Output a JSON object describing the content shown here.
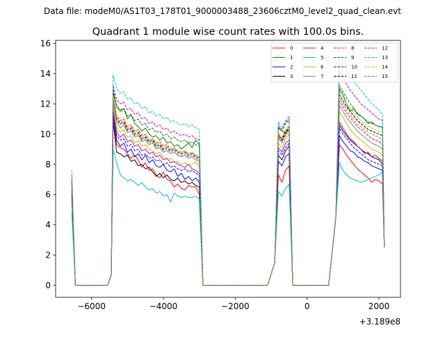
{
  "chart_data": {
    "type": "line",
    "suptitle": "Data file: modeM0/AS1T03_178T01_9000003488_23606cztM0_level2_quad_clean.evt",
    "title": "Quadrant 1 module wise count rates with 100.0s bins.",
    "xlabel": "",
    "ylabel": "",
    "x_offset_label": "+3.189e8",
    "xlim": [
      -7000,
      2600
    ],
    "ylim": [
      -0.8,
      16.2
    ],
    "x_ticks": [
      -6000,
      -4000,
      -2000,
      0,
      2000
    ],
    "x_tick_labels": [
      "−6000",
      "−4000",
      "−2000",
      "0",
      "2000"
    ],
    "y_ticks": [
      0,
      2,
      4,
      6,
      8,
      10,
      12,
      14,
      16
    ],
    "y_tick_labels": [
      "0",
      "2",
      "4",
      "6",
      "8",
      "10",
      "12",
      "14",
      "16"
    ],
    "legend_position": "top-right",
    "grid": false,
    "segments": [
      {
        "start": -5400,
        "end": -3000,
        "step": 100
      },
      {
        "start": -800,
        "end": -500,
        "step": 100
      },
      {
        "start": 900,
        "end": 2100,
        "step": 100
      }
    ],
    "series": [
      {
        "name": "0",
        "color": "#ff0000",
        "dash": "solid",
        "pre": 6.5,
        "edge": 11.0,
        "s1": [
          9.6,
          9.3,
          9.1,
          9.0,
          8.7,
          8.4,
          8.6,
          8.3,
          7.8,
          8.1,
          7.6,
          7.7,
          7.3,
          7.1,
          7.5,
          7.0,
          6.9,
          6.5,
          6.7,
          6.4,
          6.3,
          6.6,
          6.5,
          6.5,
          6.0
        ],
        "s2": [
          7.3,
          6.8,
          7.6,
          7.9
        ],
        "s3": [
          9.3,
          9.0,
          8.6,
          8.3,
          8.0,
          7.7,
          7.5,
          7.3,
          7.1,
          6.8,
          7.0,
          6.9,
          6.7
        ]
      },
      {
        "name": "1",
        "color": "#008000",
        "dash": "solid",
        "pre": 6.8,
        "edge": 12.8,
        "s1": [
          12.2,
          11.8,
          11.5,
          11.7,
          11.0,
          11.3,
          10.7,
          10.5,
          10.2,
          10.4,
          10.0,
          9.8,
          9.9,
          9.6,
          9.8,
          9.4,
          9.5,
          9.2,
          9.3,
          9.0,
          9.2,
          9.4,
          9.1,
          9.6,
          9.3
        ],
        "s2": [
          10.4,
          10.2,
          10.1,
          10.3
        ],
        "s3": [
          13.0,
          12.6,
          12.0,
          11.5,
          11.7,
          11.3,
          11.2,
          11.0,
          10.7,
          10.8,
          10.6,
          10.5,
          10.5
        ]
      },
      {
        "name": "2",
        "color": "#0000ff",
        "dash": "solid",
        "pre": 5.9,
        "edge": 11.4,
        "s1": [
          9.8,
          9.6,
          9.2,
          9.4,
          8.8,
          9.0,
          8.5,
          8.7,
          8.3,
          8.6,
          8.1,
          8.3,
          7.9,
          7.8,
          8.0,
          7.6,
          7.5,
          7.7,
          7.2,
          7.4,
          7.0,
          7.2,
          6.9,
          7.1,
          6.8
        ],
        "s2": [
          8.2,
          7.9,
          8.5,
          8.7
        ],
        "s3": [
          9.9,
          9.5,
          9.2,
          8.9,
          8.8,
          8.5,
          8.4,
          8.2,
          8.1,
          7.9,
          7.8,
          7.7,
          7.6
        ]
      },
      {
        "name": "3",
        "color": "#000000",
        "dash": "solid",
        "pre": 6.0,
        "edge": 10.8,
        "s1": [
          9.0,
          8.8,
          8.7,
          8.5,
          8.6,
          8.2,
          8.3,
          7.9,
          8.0,
          7.7,
          7.8,
          7.5,
          7.2,
          7.4,
          7.1,
          7.3,
          7.0,
          6.9,
          7.1,
          6.8,
          6.9,
          6.7,
          6.8,
          6.6,
          6.5
        ],
        "s2": [
          8.6,
          8.3,
          8.9,
          9.2
        ],
        "s3": [
          10.6,
          10.2,
          9.9,
          9.6,
          9.4,
          9.2,
          9.0,
          8.8,
          8.7,
          8.5,
          8.4,
          8.3,
          8.0
        ]
      },
      {
        "name": "4",
        "color": "#bf00bf",
        "dash": "solid",
        "pre": 6.3,
        "edge": 11.6,
        "s1": [
          10.5,
          10.1,
          9.8,
          10.0,
          9.5,
          9.6,
          9.2,
          9.3,
          8.9,
          9.0,
          8.7,
          8.8,
          8.5,
          8.6,
          8.3,
          8.4,
          8.1,
          8.2,
          8.0,
          7.9,
          7.8,
          8.0,
          7.7,
          7.6,
          7.4
        ],
        "s2": [
          9.1,
          8.8,
          9.4,
          9.6
        ],
        "s3": [
          10.8,
          10.4,
          10.0,
          9.7,
          9.5,
          9.2,
          9.0,
          8.7,
          8.8,
          8.5,
          8.6,
          8.4,
          8.2
        ]
      },
      {
        "name": "5",
        "color": "#00bfbf",
        "dash": "solid",
        "pre": 4.8,
        "edge": 9.0,
        "s1": [
          8.1,
          8.1,
          7.3,
          7.1,
          6.9,
          7.0,
          6.8,
          6.6,
          6.8,
          6.5,
          6.3,
          6.4,
          6.1,
          6.2,
          5.9,
          6.0,
          5.5,
          6.1,
          5.9,
          5.8,
          5.9,
          5.8,
          5.8,
          5.9,
          5.7
        ],
        "s2": [
          6.2,
          5.9,
          6.4,
          6.7
        ],
        "s3": [
          8.1,
          7.6,
          7.3,
          7.1,
          7.0,
          6.9,
          6.8,
          6.9,
          7.0,
          7.1,
          7.2,
          7.3,
          7.5
        ]
      },
      {
        "name": "6",
        "color": "#bfbf00",
        "dash": "solid",
        "pre": 6.4,
        "edge": 11.9,
        "s1": [
          10.8,
          10.4,
          10.1,
          10.3,
          9.8,
          9.9,
          9.4,
          9.6,
          9.2,
          9.3,
          9.0,
          8.9,
          8.7,
          8.8,
          8.5,
          8.3,
          8.4,
          8.1,
          8.2,
          8.0,
          8.1,
          7.9,
          8.0,
          8.2,
          7.8
        ],
        "s2": [
          9.4,
          9.1,
          9.7,
          10.0
        ],
        "s3": [
          11.5,
          11.1,
          10.7,
          10.3,
          10.0,
          9.8,
          9.6,
          9.4,
          9.2,
          9.0,
          8.9,
          8.8,
          8.6
        ]
      },
      {
        "name": "7",
        "color": "#808080",
        "dash": "solid",
        "pre": 6.6,
        "edge": 12.1,
        "s1": [
          11.1,
          10.8,
          10.4,
          10.6,
          10.1,
          10.2,
          9.8,
          9.9,
          9.5,
          9.6,
          9.3,
          9.4,
          9.0,
          9.1,
          8.8,
          8.9,
          8.7,
          8.8,
          8.6,
          8.5,
          8.6,
          8.4,
          8.5,
          8.3,
          8.2
        ],
        "s2": [
          9.8,
          9.5,
          10.0,
          10.3
        ],
        "s3": [
          11.9,
          11.5,
          11.1,
          10.8,
          10.5,
          10.2,
          10.0,
          9.8,
          9.6,
          9.4,
          9.3,
          9.2,
          9.0
        ]
      },
      {
        "name": "8",
        "color": "#ff0000",
        "dash": "dashed",
        "pre": 6.9,
        "edge": 12.6,
        "s1": [
          11.6,
          11.2,
          10.9,
          11.0,
          10.5,
          10.6,
          10.2,
          10.3,
          9.9,
          10.0,
          9.6,
          9.7,
          9.4,
          9.5,
          9.2,
          9.3,
          9.0,
          9.1,
          8.9,
          8.8,
          8.9,
          8.7,
          8.8,
          8.6,
          8.5
        ],
        "s2": [
          10.0,
          9.7,
          10.2,
          10.5
        ],
        "s3": [
          12.2,
          11.8,
          11.4,
          11.1,
          10.8,
          10.5,
          10.3,
          10.1,
          9.9,
          9.7,
          9.6,
          9.5,
          9.3
        ]
      },
      {
        "name": "9",
        "color": "#008000",
        "dash": "dashed",
        "pre": 7.0,
        "edge": 13.0,
        "s1": [
          12.3,
          11.9,
          11.6,
          11.7,
          11.2,
          11.3,
          10.9,
          11.0,
          10.6,
          10.7,
          10.3,
          10.4,
          10.1,
          10.2,
          9.9,
          10.0,
          9.7,
          9.8,
          9.6,
          9.5,
          9.6,
          9.4,
          9.5,
          9.3,
          9.2
        ],
        "s2": [
          10.5,
          10.2,
          10.7,
          10.9
        ],
        "s3": [
          13.2,
          12.8,
          12.4,
          12.0,
          11.7,
          11.4,
          11.2,
          11.0,
          10.8,
          10.7,
          10.6,
          10.5,
          10.4
        ]
      },
      {
        "name": "10",
        "color": "#0000ff",
        "dash": "dashed",
        "pre": 6.2,
        "edge": 11.2,
        "s1": [
          10.2,
          9.9,
          9.6,
          9.7,
          9.2,
          9.3,
          8.9,
          9.0,
          8.6,
          8.7,
          8.4,
          8.5,
          8.2,
          8.3,
          8.0,
          8.1,
          7.8,
          7.9,
          7.7,
          7.6,
          7.7,
          7.5,
          7.6,
          7.4,
          7.3
        ],
        "s2": [
          8.9,
          8.6,
          9.1,
          9.4
        ],
        "s3": [
          10.4,
          10.0,
          9.7,
          9.4,
          9.1,
          8.9,
          8.7,
          8.5,
          8.3,
          8.2,
          8.1,
          8.0,
          7.9
        ]
      },
      {
        "name": "11",
        "color": "#000000",
        "dash": "dashed",
        "pre": 6.8,
        "edge": 12.4,
        "s1": [
          11.4,
          11.0,
          10.7,
          10.8,
          10.3,
          10.4,
          10.0,
          10.1,
          9.7,
          9.8,
          9.5,
          9.6,
          9.2,
          9.3,
          9.0,
          9.1,
          8.9,
          9.0,
          8.8,
          8.7,
          8.8,
          8.6,
          8.7,
          8.5,
          8.4
        ],
        "s2": [
          9.9,
          9.6,
          10.1,
          10.4
        ],
        "s3": [
          12.6,
          12.2,
          11.8,
          11.5,
          11.2,
          10.9,
          10.7,
          10.5,
          10.3,
          10.2,
          10.1,
          10.0,
          9.9
        ]
      },
      {
        "name": "12",
        "color": "#bf00bf",
        "dash": "dashed",
        "pre": 7.3,
        "edge": 13.2,
        "s1": [
          12.7,
          12.3,
          12.0,
          12.1,
          11.6,
          11.7,
          11.3,
          11.4,
          11.0,
          11.1,
          10.7,
          10.8,
          10.5,
          10.6,
          10.3,
          10.4,
          10.1,
          10.2,
          10.0,
          9.9,
          10.0,
          9.8,
          9.9,
          9.7,
          9.6
        ],
        "s2": [
          10.6,
          10.3,
          10.8,
          11.0
        ],
        "s3": [
          14.2,
          13.8,
          13.3,
          12.9,
          12.6,
          12.3,
          12.0,
          11.8,
          11.6,
          11.4,
          11.2,
          11.0,
          10.9
        ]
      },
      {
        "name": "13",
        "color": "#00bfbf",
        "dash": "dashed",
        "pre": 7.6,
        "edge": 13.9,
        "s1": [
          13.4,
          13.0,
          12.7,
          12.8,
          12.3,
          12.4,
          12.0,
          12.1,
          11.7,
          11.8,
          11.4,
          11.5,
          11.2,
          11.3,
          11.0,
          11.1,
          10.8,
          10.9,
          10.7,
          10.6,
          10.7,
          10.5,
          10.6,
          10.4,
          10.3
        ],
        "s2": [
          10.8,
          10.5,
          10.9,
          11.2
        ],
        "s3": [
          15.2,
          14.8,
          14.3,
          13.9,
          13.5,
          13.2,
          12.9,
          12.6,
          12.3,
          12.0,
          11.8,
          11.6,
          11.3
        ]
      },
      {
        "name": "14",
        "color": "#bfbf00",
        "dash": "dashed",
        "pre": 6.9,
        "edge": 12.5,
        "s1": [
          11.5,
          11.1,
          10.8,
          10.9,
          10.4,
          10.5,
          10.1,
          10.2,
          9.8,
          9.9,
          9.6,
          9.7,
          9.3,
          9.4,
          9.1,
          9.2,
          9.0,
          9.1,
          8.9,
          8.8,
          8.9,
          8.7,
          8.8,
          8.6,
          8.5
        ],
        "s2": [
          10.1,
          9.8,
          10.3,
          10.6
        ],
        "s3": [
          12.8,
          12.4,
          12.0,
          11.7,
          11.4,
          11.1,
          10.9,
          10.7,
          10.5,
          10.4,
          10.3,
          10.2,
          10.1
        ]
      },
      {
        "name": "15",
        "color": "#808080",
        "dash": "dashed",
        "pre": 6.7,
        "edge": 12.3,
        "s1": [
          11.3,
          10.9,
          10.6,
          10.7,
          10.2,
          10.3,
          9.9,
          10.0,
          9.6,
          9.7,
          9.4,
          9.5,
          9.1,
          9.2,
          8.9,
          9.0,
          8.8,
          8.9,
          8.7,
          8.6,
          8.7,
          8.5,
          8.6,
          8.4,
          8.3
        ],
        "s2": [
          9.7,
          9.4,
          9.9,
          10.2
        ],
        "s3": [
          12.4,
          12.0,
          11.6,
          11.3,
          11.0,
          10.7,
          10.5,
          10.3,
          10.1,
          10.0,
          9.9,
          9.8,
          9.6
        ]
      }
    ]
  }
}
